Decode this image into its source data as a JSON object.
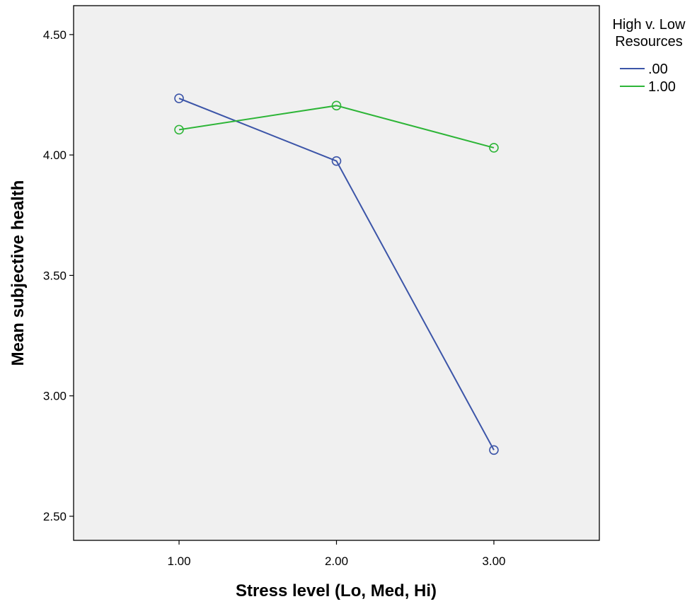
{
  "chart_data": {
    "type": "line",
    "title": "",
    "xlabel": "Stress level (Lo, Med, Hi)",
    "ylabel": "Mean subjective health",
    "x": [
      1.0,
      2.0,
      3.0
    ],
    "x_tick_labels": [
      "1.00",
      "2.00",
      "3.00"
    ],
    "xlim": [
      0.33,
      3.67
    ],
    "ylim": [
      2.4,
      4.62
    ],
    "y_ticks": [
      2.5,
      3.0,
      3.5,
      4.0,
      4.5
    ],
    "y_tick_labels": [
      "2.50",
      "3.00",
      "3.50",
      "4.00",
      "4.50"
    ],
    "grid": false,
    "legend": {
      "title_line1": "High v. Low",
      "title_line2": "Resources",
      "placement": "right"
    },
    "series": [
      {
        "name": ".00",
        "color": "#3c55a8",
        "values": [
          4.235,
          3.975,
          2.775
        ]
      },
      {
        "name": "1.00",
        "color": "#2db537",
        "values": [
          4.105,
          4.205,
          4.03
        ]
      }
    ],
    "plot_background": "#f0f0f0"
  }
}
